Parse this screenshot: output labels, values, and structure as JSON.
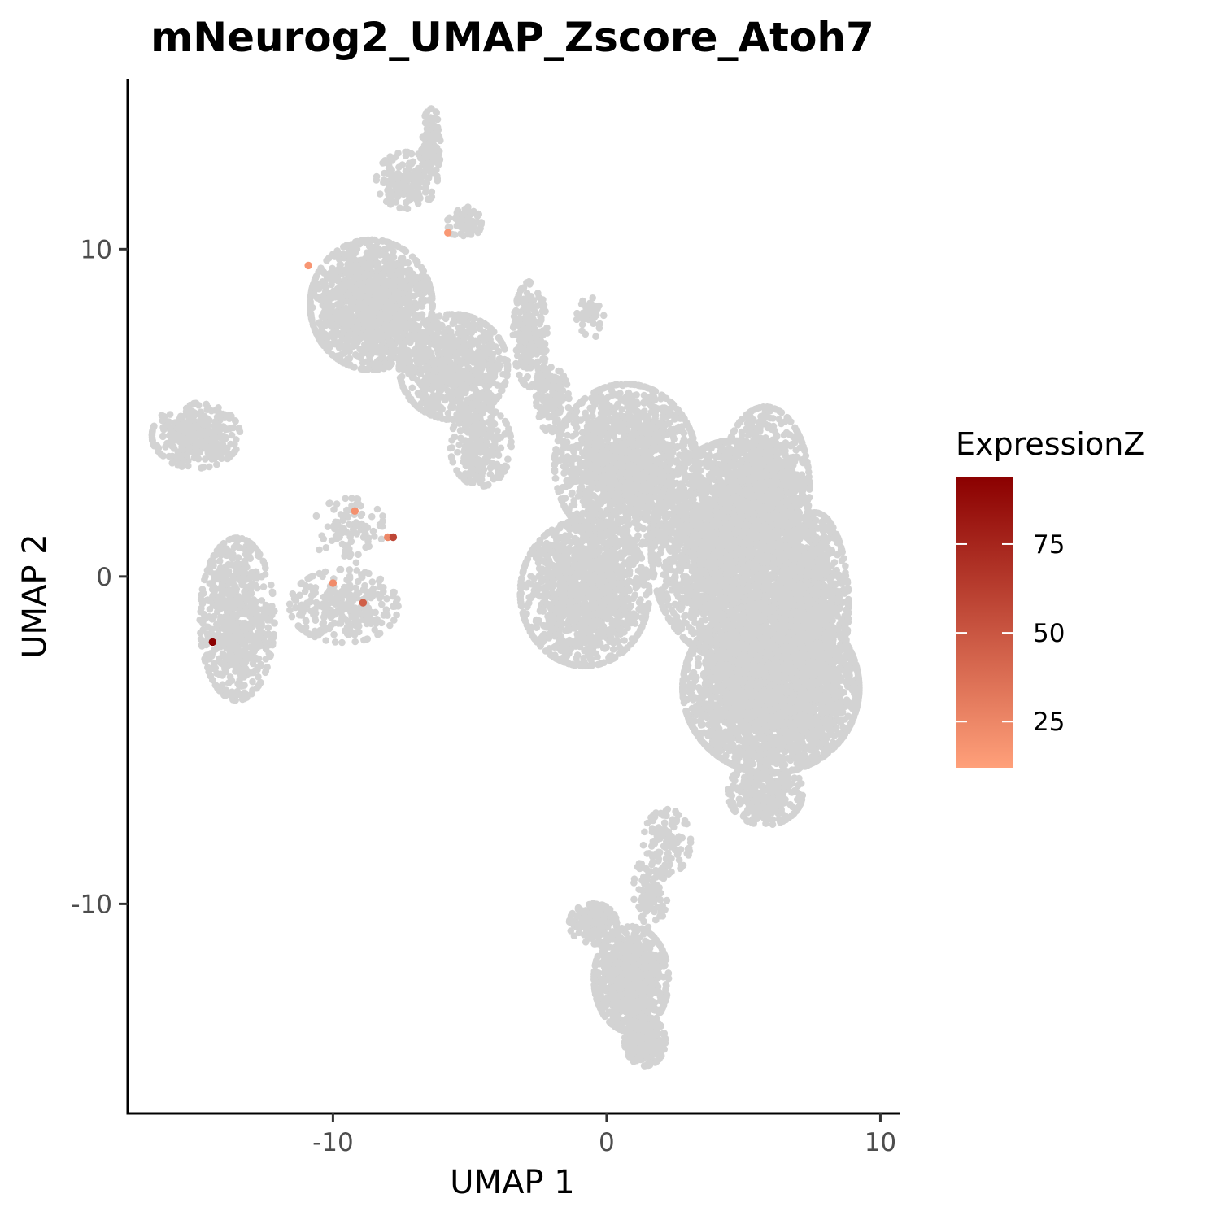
{
  "chart_data": {
    "type": "scatter",
    "title": "mNeurog2_UMAP_Zscore_Atoh7",
    "xlabel": "UMAP 1",
    "ylabel": "UMAP 2",
    "xlim": [
      -17.5,
      10.7
    ],
    "ylim": [
      -16.4,
      15.2
    ],
    "x_ticks": [
      -10,
      0,
      10
    ],
    "y_ticks": [
      -10,
      0,
      10
    ],
    "x_tick_labels": [
      "-10",
      "0",
      "10"
    ],
    "y_tick_labels": [
      "-10",
      "0",
      "10"
    ],
    "grid": false,
    "background_color": "#d3d3d3",
    "background_note": "thousands of cells with no expression drawn in light gray, forming clusters",
    "clusters": [
      {
        "x_center": -15.0,
        "y_center": 4.3,
        "x_spread": 1.3,
        "y_spread": 0.8,
        "points": 350
      },
      {
        "x_center": -13.5,
        "y_center": -1.3,
        "x_spread": 1.1,
        "y_spread": 2.0,
        "points": 700
      },
      {
        "x_center": -9.6,
        "y_center": -0.9,
        "x_spread": 1.6,
        "y_spread": 0.9,
        "points": 280
      },
      {
        "x_center": -9.4,
        "y_center": 1.4,
        "x_spread": 1.1,
        "y_spread": 0.8,
        "points": 90
      },
      {
        "x_center": -8.6,
        "y_center": 8.3,
        "x_spread": 1.8,
        "y_spread": 1.6,
        "points": 1400
      },
      {
        "x_center": -5.6,
        "y_center": 6.4,
        "x_spread": 1.6,
        "y_spread": 1.3,
        "points": 900
      },
      {
        "x_center": -4.6,
        "y_center": 4.0,
        "x_spread": 0.9,
        "y_spread": 1.0,
        "points": 250
      },
      {
        "x_center": -7.3,
        "y_center": 12.1,
        "x_spread": 0.9,
        "y_spread": 0.7,
        "points": 170
      },
      {
        "x_center": -6.4,
        "y_center": 13.3,
        "x_spread": 0.3,
        "y_spread": 0.8,
        "points": 120
      },
      {
        "x_center": -5.2,
        "y_center": 10.8,
        "x_spread": 0.5,
        "y_spread": 0.4,
        "points": 60
      },
      {
        "x_center": -2.8,
        "y_center": 7.4,
        "x_spread": 0.5,
        "y_spread": 1.3,
        "points": 260
      },
      {
        "x_center": -0.6,
        "y_center": 7.9,
        "x_spread": 0.4,
        "y_spread": 0.5,
        "points": 40
      },
      {
        "x_center": -2.0,
        "y_center": 5.4,
        "x_spread": 0.5,
        "y_spread": 0.8,
        "points": 160
      },
      {
        "x_center": 0.7,
        "y_center": 3.4,
        "x_spread": 2.1,
        "y_spread": 2.0,
        "points": 1600
      },
      {
        "x_center": -0.8,
        "y_center": -0.5,
        "x_spread": 1.9,
        "y_spread": 1.8,
        "points": 1400
      },
      {
        "x_center": 4.6,
        "y_center": 0.8,
        "x_spread": 2.4,
        "y_spread": 2.7,
        "points": 3000
      },
      {
        "x_center": 6.0,
        "y_center": -3.4,
        "x_spread": 2.6,
        "y_spread": 2.1,
        "points": 3400
      },
      {
        "x_center": 5.8,
        "y_center": 2.7,
        "x_spread": 1.3,
        "y_spread": 2.0,
        "points": 900
      },
      {
        "x_center": 7.6,
        "y_center": -0.9,
        "x_spread": 1.0,
        "y_spread": 2.3,
        "points": 900
      },
      {
        "x_center": 5.8,
        "y_center": -6.6,
        "x_spread": 1.1,
        "y_spread": 0.8,
        "points": 300
      },
      {
        "x_center": 2.2,
        "y_center": -8.1,
        "x_spread": 0.7,
        "y_spread": 0.8,
        "points": 120
      },
      {
        "x_center": 1.6,
        "y_center": -9.6,
        "x_spread": 0.5,
        "y_spread": 0.9,
        "points": 90
      },
      {
        "x_center": -0.5,
        "y_center": -10.6,
        "x_spread": 0.7,
        "y_spread": 0.5,
        "points": 220
      },
      {
        "x_center": 0.9,
        "y_center": -12.3,
        "x_spread": 1.1,
        "y_spread": 1.3,
        "points": 900
      },
      {
        "x_center": 1.4,
        "y_center": -14.2,
        "x_spread": 0.6,
        "y_spread": 0.6,
        "points": 250
      }
    ],
    "highlighted_points": [
      {
        "x": -14.4,
        "y": -2.0,
        "value": 94
      },
      {
        "x": -10.9,
        "y": 9.5,
        "value": 17
      },
      {
        "x": -5.8,
        "y": 10.5,
        "value": 16
      },
      {
        "x": -9.2,
        "y": 2.0,
        "value": 20
      },
      {
        "x": -8.0,
        "y": 1.2,
        "value": 25
      },
      {
        "x": -7.8,
        "y": 1.2,
        "value": 58
      },
      {
        "x": -10.0,
        "y": -0.2,
        "value": 22
      },
      {
        "x": -8.9,
        "y": -0.8,
        "value": 45
      }
    ],
    "legend": {
      "title": "ExpressionZ",
      "position": "right",
      "type": "colorbar",
      "range": [
        12,
        94
      ],
      "ticks": [
        25,
        50,
        75
      ],
      "tick_labels": [
        "25",
        "50",
        "75"
      ],
      "color_low": "#ffa07a",
      "color_high": "#8b0000"
    }
  }
}
